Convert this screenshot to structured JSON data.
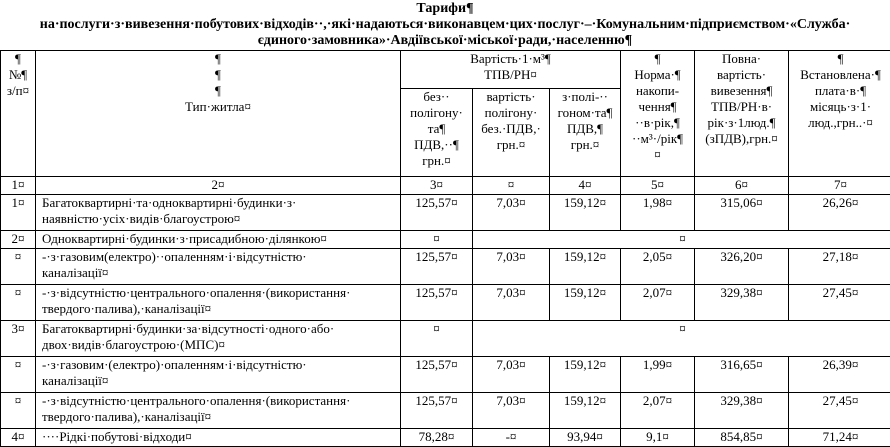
{
  "document": {
    "title": "Тарифи¶",
    "subtitle": "на·послуги·з·вивезення·побутових·відходів··,·які·надаються·виконавцем·цих·послуг·–·Комунальним·підприємством·«Служба·\nєдиного·замовника»·Авдіївської·міської·ради,·населенню¶"
  },
  "table": {
    "headers": {
      "num": "¶\n№¶\nз/п¤",
      "type": "¶\n¶\n¶\nТип·житла¤",
      "cost_group": "Вартість·1·м³¶\nТПВ/РН¤",
      "no_landfill": "без··\nполігону·\nта¶\nПДВ,··¶\nгрн.¤",
      "landfill_cost": "вартість·\nполігону·\nбез.·ПДВ,·\nгрн.¤",
      "with_landfill": "з·полі-··\nгоном·та¶\nПДВ,¶\nгрн.¤",
      "norm": "¶\nНорма·¶\nнакопи-\nчення¶\n··в·рік,¶\n··м³·/рік¶\n¤",
      "full_cost": "Повна·\nвартість·\nвивезення¶\nТПВ/РН·в·\nрік·з·1люд.¶\n(зПДВ),грн.¤",
      "fee": "¶\nВстановлена·¶\nплата·в·¶\nмісяць·з·1·\nлюд.,грн..·¤"
    },
    "column_numbers": [
      "1¤",
      "2¤",
      "3¤",
      "¤",
      "4¤",
      "5¤",
      "6¤",
      "7¤"
    ],
    "rows": [
      {
        "num": "1¤",
        "type": "Багатоквартирні·та·однoквартирні·будинки·з·\nнаявністю·усіх·видів·благоустрою¤",
        "values": [
          "125,57¤",
          "7,03¤",
          "159,12¤",
          "1,98¤",
          "315,06¤",
          "26,26¤"
        ]
      },
      {
        "num": "2¤",
        "type": "Одноквартирні·будинки·з·присадибною·ділянкою¤",
        "group": true,
        "values": [
          "¤",
          "¤"
        ]
      },
      {
        "num": "¤",
        "type": "-·з·газовим(електро)··опаленням·і·відсутністю·\nканалізації¤",
        "values": [
          "125,57¤",
          "7,03¤",
          "159,12¤",
          "2,05¤",
          "326,20¤",
          "27,18¤"
        ]
      },
      {
        "num": "¤",
        "type": "-·з·відсутністю·центрального·опалення·(використання·\nтвердого·палива),·каналізації¤",
        "values": [
          "125,57¤",
          "7,03¤",
          "159,12¤",
          "2,07¤",
          "329,38¤",
          "27,45¤"
        ]
      },
      {
        "num": "3¤",
        "type": "Багатоквартирні·будинки·за·відсутності·одного·або·\nдвох·видів·благоустрою·(МПС)¤",
        "group": true,
        "values": [
          "¤",
          "¤"
        ]
      },
      {
        "num": "¤",
        "type": "-·з·газовим·(електро)·опаленням·і·відсутністю·\nканалізації¤",
        "values": [
          "125,57¤",
          "7,03¤",
          "159,12¤",
          "1,99¤",
          "316,65¤",
          "26,39¤"
        ]
      },
      {
        "num": "¤",
        "type": "-·з·відсутністю·центрального·опалення·(використання·\nтвердого·палива),·каналізації¤",
        "values": [
          "125,57¤",
          "7,03¤",
          "159,12¤",
          "2,07¤",
          "329,38¤",
          "27,45¤"
        ]
      },
      {
        "num": "4¤",
        "type": "····Рідкі·побутові·відходи¤",
        "values": [
          "78,28¤",
          "-¤",
          "93,94¤",
          "9,1¤",
          "854,85¤",
          "71,24¤"
        ]
      }
    ]
  }
}
